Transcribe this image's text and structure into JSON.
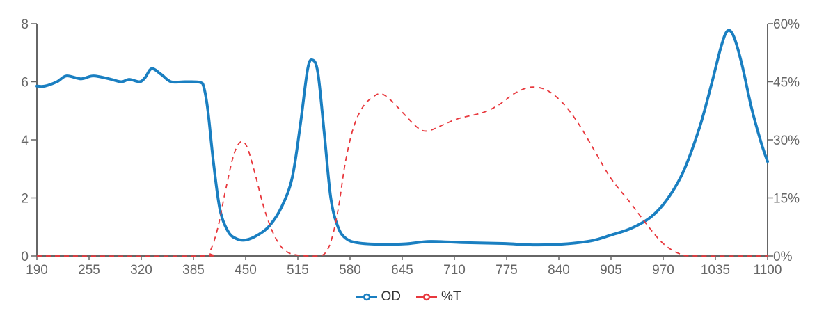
{
  "chart_data": {
    "type": "line",
    "xlim": [
      190,
      1100
    ],
    "x_ticks": [
      "190",
      "255",
      "320",
      "385",
      "450",
      "515",
      "580",
      "645",
      "710",
      "775",
      "840",
      "905",
      "970",
      "1035",
      "1100"
    ],
    "y_left": {
      "lim": [
        0,
        8
      ],
      "ticks": [
        "0",
        "2",
        "4",
        "6",
        "8"
      ]
    },
    "y_right": {
      "lim": [
        0,
        60
      ],
      "ticks": [
        "0%",
        "15%",
        "30%",
        "45%",
        "60%"
      ]
    },
    "grid": false,
    "legend_position": "bottom",
    "series": [
      {
        "name": "OD",
        "axis": "left",
        "color": "#1a7fc1",
        "style": "solid",
        "points": [
          [
            190,
            5.85
          ],
          [
            200,
            5.85
          ],
          [
            215,
            6.0
          ],
          [
            227,
            6.2
          ],
          [
            245,
            6.1
          ],
          [
            260,
            6.2
          ],
          [
            280,
            6.1
          ],
          [
            295,
            6.0
          ],
          [
            305,
            6.08
          ],
          [
            318,
            6.0
          ],
          [
            325,
            6.15
          ],
          [
            333,
            6.45
          ],
          [
            345,
            6.25
          ],
          [
            357,
            6.0
          ],
          [
            375,
            6.0
          ],
          [
            393,
            5.98
          ],
          [
            398,
            5.8
          ],
          [
            403,
            5.0
          ],
          [
            410,
            3.2
          ],
          [
            418,
            1.6
          ],
          [
            428,
            0.85
          ],
          [
            438,
            0.6
          ],
          [
            450,
            0.55
          ],
          [
            465,
            0.72
          ],
          [
            480,
            1.05
          ],
          [
            495,
            1.7
          ],
          [
            508,
            2.7
          ],
          [
            518,
            4.5
          ],
          [
            527,
            6.4
          ],
          [
            533,
            6.75
          ],
          [
            540,
            6.3
          ],
          [
            548,
            4.2
          ],
          [
            556,
            2.0
          ],
          [
            565,
            1.0
          ],
          [
            575,
            0.6
          ],
          [
            590,
            0.45
          ],
          [
            620,
            0.4
          ],
          [
            650,
            0.42
          ],
          [
            680,
            0.5
          ],
          [
            720,
            0.46
          ],
          [
            770,
            0.43
          ],
          [
            810,
            0.38
          ],
          [
            845,
            0.41
          ],
          [
            880,
            0.52
          ],
          [
            905,
            0.72
          ],
          [
            930,
            0.95
          ],
          [
            955,
            1.35
          ],
          [
            975,
            1.95
          ],
          [
            995,
            2.9
          ],
          [
            1015,
            4.4
          ],
          [
            1030,
            5.9
          ],
          [
            1042,
            7.2
          ],
          [
            1050,
            7.75
          ],
          [
            1058,
            7.55
          ],
          [
            1068,
            6.6
          ],
          [
            1080,
            5.1
          ],
          [
            1092,
            3.9
          ],
          [
            1100,
            3.25
          ]
        ]
      },
      {
        "name": "%T",
        "axis": "right",
        "color": "#e8383d",
        "style": "dashed",
        "points": [
          [
            190,
            0
          ],
          [
            395,
            0
          ],
          [
            405,
            1
          ],
          [
            415,
            7
          ],
          [
            425,
            17
          ],
          [
            435,
            26
          ],
          [
            444,
            29.5
          ],
          [
            452,
            28
          ],
          [
            462,
            21
          ],
          [
            472,
            13
          ],
          [
            482,
            7
          ],
          [
            492,
            3
          ],
          [
            502,
            1
          ],
          [
            515,
            0.2
          ],
          [
            540,
            0
          ],
          [
            550,
            1
          ],
          [
            558,
            5
          ],
          [
            566,
            13
          ],
          [
            574,
            24
          ],
          [
            584,
            33
          ],
          [
            596,
            38.5
          ],
          [
            610,
            41.3
          ],
          [
            620,
            41.8
          ],
          [
            632,
            40
          ],
          [
            648,
            36.5
          ],
          [
            665,
            33
          ],
          [
            677,
            32.3
          ],
          [
            695,
            33.8
          ],
          [
            715,
            35.5
          ],
          [
            745,
            37
          ],
          [
            765,
            39
          ],
          [
            785,
            42
          ],
          [
            805,
            43.6
          ],
          [
            825,
            42.8
          ],
          [
            845,
            39.5
          ],
          [
            865,
            34
          ],
          [
            885,
            27
          ],
          [
            905,
            20
          ],
          [
            930,
            13.5
          ],
          [
            950,
            8
          ],
          [
            970,
            3.2
          ],
          [
            990,
            0.6
          ],
          [
            1010,
            0
          ],
          [
            1100,
            0
          ]
        ]
      }
    ]
  }
}
